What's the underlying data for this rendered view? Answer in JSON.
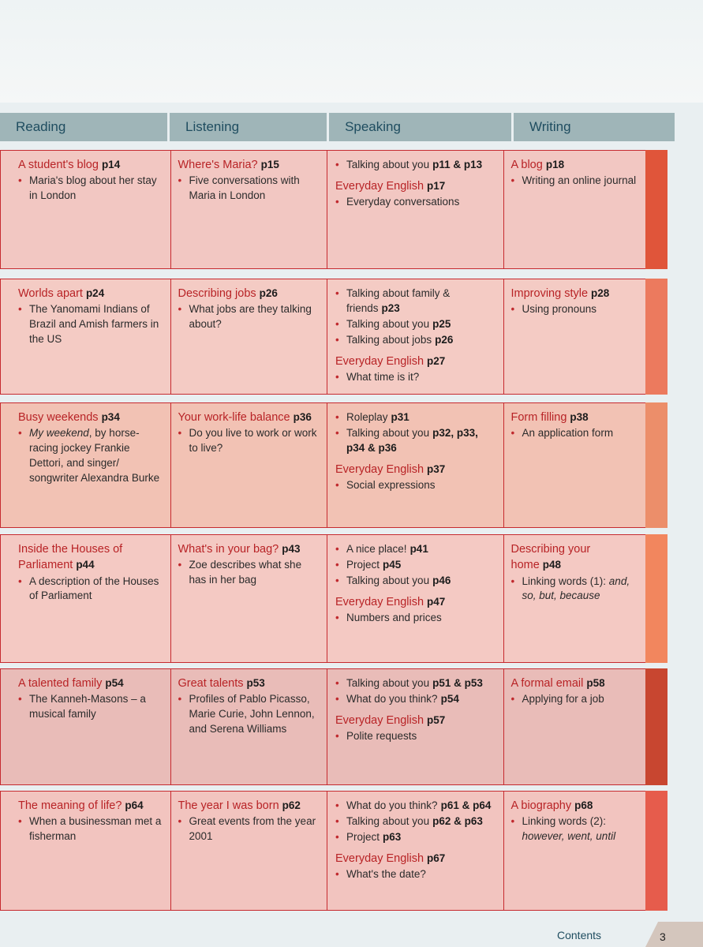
{
  "header": {
    "reading": "Reading",
    "listening": "Listening",
    "speaking": "Speaking",
    "writing": "Writing"
  },
  "units": [
    {
      "reading": {
        "title": "A student's blog",
        "page": "p14",
        "bullets": [
          "Maria's blog about her stay in London"
        ]
      },
      "listening": {
        "title": "Where's Maria?",
        "page": "p15",
        "bullets": [
          "Five conversations with Maria in London"
        ]
      },
      "speaking": {
        "bullets": [
          {
            "text": "Talking about you",
            "page": "p11 & p13"
          }
        ],
        "everyday": {
          "title": "Everyday English",
          "page": "p17",
          "bullets": [
            "Everyday conversations"
          ]
        }
      },
      "writing": {
        "title": "A blog",
        "page": "p18",
        "bullets": [
          "Writing an online journal"
        ]
      }
    },
    {
      "reading": {
        "title": "Worlds apart",
        "page": "p24",
        "bullets": [
          "The Yanomami Indians of Brazil and Amish farmers in the US"
        ]
      },
      "listening": {
        "title": "Describing jobs",
        "page": "p26",
        "bullets": [
          "What jobs are they talking about?"
        ]
      },
      "speaking": {
        "bullets": [
          {
            "text": "Talking about family & friends",
            "page": "p23"
          },
          {
            "text": "Talking about you",
            "page": "p25"
          },
          {
            "text": "Talking about jobs",
            "page": "p26"
          }
        ],
        "everyday": {
          "title": "Everyday English",
          "page": "p27",
          "bullets": [
            "What time is it?"
          ]
        }
      },
      "writing": {
        "title": "Improving style",
        "page": "p28",
        "bullets": [
          "Using pronouns"
        ]
      }
    },
    {
      "reading": {
        "title": "Busy weekends",
        "page": "p34",
        "bullets_rich": [
          {
            "italic": "My weekend",
            "text": ", by horse-racing jockey Frankie Dettori, and singer/ songwriter Alexandra Burke"
          }
        ]
      },
      "listening": {
        "title": "Your work-life balance",
        "page": "p36",
        "bullets": [
          "Do you live to work or work to live?"
        ]
      },
      "speaking": {
        "bullets": [
          {
            "text": "Roleplay",
            "page": "p31"
          },
          {
            "text": "Talking about you",
            "page": "p32, p33, p34 & p36"
          }
        ],
        "everyday": {
          "title": "Everyday English",
          "page": "p37",
          "bullets": [
            "Social expressions"
          ]
        }
      },
      "writing": {
        "title": "Form filling",
        "page": "p38",
        "bullets": [
          "An application form"
        ]
      }
    },
    {
      "reading": {
        "title": "Inside the Houses of Parliament",
        "page": "p44",
        "bullets": [
          "A description of the Houses of Parliament"
        ]
      },
      "listening": {
        "title": "What's in your bag?",
        "page": "p43",
        "bullets": [
          "Zoe describes what she has in her bag"
        ]
      },
      "speaking": {
        "bullets": [
          {
            "text": "A nice place!",
            "page": "p41"
          },
          {
            "text": "Project",
            "page": "p45"
          },
          {
            "text": "Talking about you",
            "page": "p46"
          }
        ],
        "everyday": {
          "title": "Everyday English",
          "page": "p47",
          "bullets": [
            "Numbers and prices"
          ]
        }
      },
      "writing": {
        "title": "Describing your home",
        "page": "p48",
        "bullets_rich": [
          {
            "text": "Linking words (1): ",
            "italic": "and, so, but, because"
          }
        ]
      }
    },
    {
      "reading": {
        "title": "A talented family",
        "page": "p54",
        "bullets": [
          "The Kanneh-Masons – a musical family"
        ]
      },
      "listening": {
        "title": "Great talents",
        "page": "p53",
        "bullets": [
          "Profiles of Pablo Picasso, Marie Curie, John Lennon, and Serena Williams"
        ]
      },
      "speaking": {
        "bullets": [
          {
            "text": "Talking about you",
            "page": "p51 & p53"
          },
          {
            "text": "What do you think?",
            "page": "p54"
          }
        ],
        "everyday": {
          "title": "Everyday English",
          "page": "p57",
          "bullets": [
            "Polite requests"
          ]
        }
      },
      "writing": {
        "title": "A formal email",
        "page": "p58",
        "bullets": [
          "Applying for a job"
        ]
      }
    },
    {
      "reading": {
        "title": "The meaning of life?",
        "page": "p64",
        "bullets": [
          "When a businessman met a fisherman"
        ]
      },
      "listening": {
        "title": "The year I was born",
        "page": "p62",
        "bullets": [
          "Great events from the year 2001"
        ]
      },
      "speaking": {
        "bullets": [
          {
            "text": "What do you think?",
            "page": "p61 & p64"
          },
          {
            "text": "Talking about you",
            "page": "p62 & p63"
          },
          {
            "text": "Project",
            "page": "p63"
          }
        ],
        "everyday": {
          "title": "Everyday English",
          "page": "p67",
          "bullets": [
            "What's the date?"
          ]
        }
      },
      "writing": {
        "title": "A biography",
        "page": "p68",
        "bullets_rich": [
          {
            "text": "Linking words (2): ",
            "italic": "however, went, until",
            "italic_newline": true
          }
        ]
      }
    }
  ],
  "colors": {
    "rows": [
      "#f2c7c2",
      "#f4cbc4",
      "#f2c2b4",
      "#f4c9c3",
      "#e9bcb8",
      "#f2c4bf"
    ],
    "strips": [
      "#e0553a",
      "#ec7a5e",
      "#ec8e6a",
      "#f2865e",
      "#c84630",
      "#e65c4c"
    ]
  },
  "footer": {
    "label": "Contents",
    "page_number": "3"
  }
}
